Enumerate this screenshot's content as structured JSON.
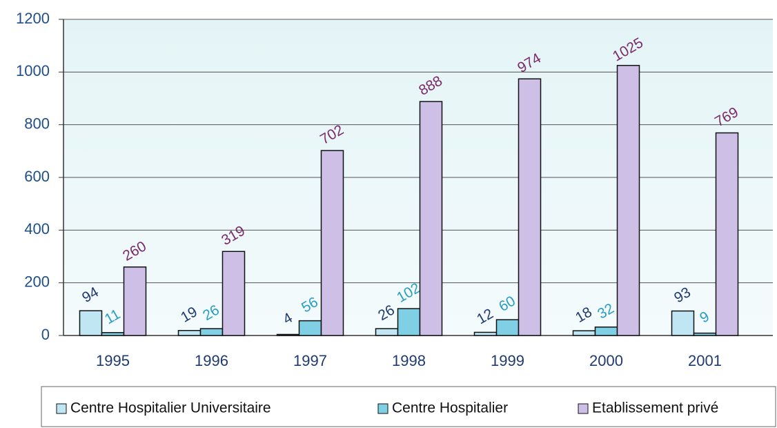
{
  "chart_data": {
    "type": "bar",
    "categories": [
      "1995",
      "1996",
      "1997",
      "1998",
      "1999",
      "2000",
      "2001"
    ],
    "series": [
      {
        "name": "Centre Hospitalier Universitaire",
        "color": "#bfe6f2",
        "label_color": "#1f3a6e",
        "values": [
          94,
          19,
          4,
          26,
          12,
          18,
          93
        ]
      },
      {
        "name": "Centre Hospitalier",
        "color": "#7fd0e4",
        "label_color": "#2a9ec0",
        "values": [
          11,
          26,
          56,
          102,
          60,
          32,
          9
        ]
      },
      {
        "name": "Etablissement privé",
        "color": "#cdbfe6",
        "label_color": "#7a2a6a",
        "values": [
          260,
          319,
          702,
          888,
          974,
          1025,
          769
        ]
      }
    ],
    "ylim": [
      0,
      1200
    ],
    "yticks": [
      0,
      200,
      400,
      600,
      800,
      1000,
      1200
    ],
    "grid": true,
    "legend": "bottom"
  }
}
